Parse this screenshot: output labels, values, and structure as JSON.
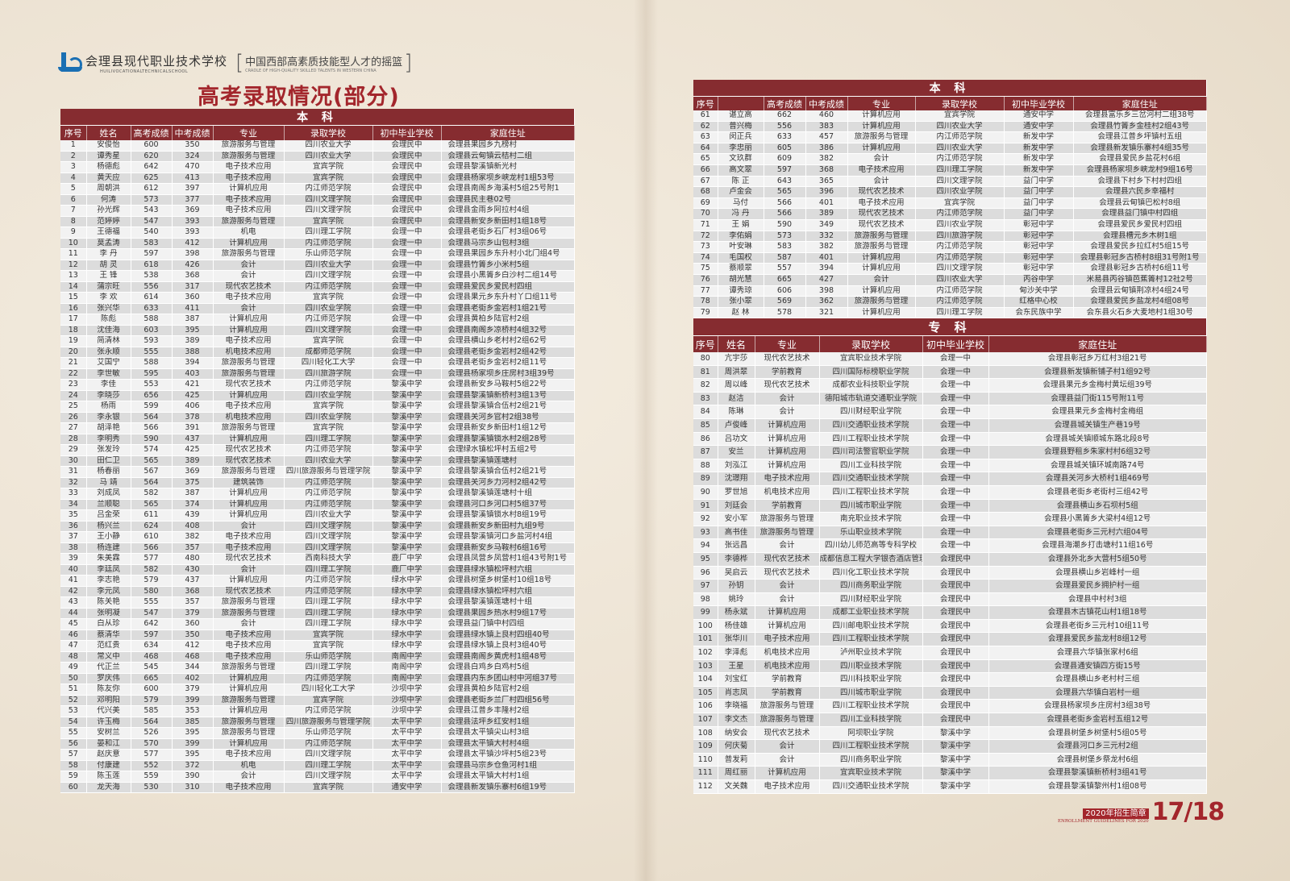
{
  "header": {
    "school_name": "会理县现代职业技术学校",
    "school_name_en": "HUILIVOCATIONALTECHNICALSCHOOL",
    "slogan": "中国西部高素质技能型人才的摇篮",
    "slogan_en": "CRADLE OF HIGH-QUALITY SKILLED TALENTS IN WESTERN CHINA",
    "bracket_open": "[",
    "bracket_close": "]"
  },
  "title": "高考录取情况(部分)",
  "colors": {
    "header_bg": "#862c30",
    "title": "#a3262c",
    "row_light": "#f2f2f2",
    "row_dark": "#dcdcdc"
  },
  "left": {
    "band": "本 科",
    "columns": [
      "序号",
      "姓名",
      "高考成绩",
      "中考成绩",
      "专业",
      "录取学校",
      "初中毕业学校",
      "家庭住址"
    ],
    "rows": [
      [
        "1",
        "安俊怡",
        "600",
        "350",
        "旅游服务与管理",
        "四川农业大学",
        "会理民中",
        "会理县果园乡九榜村"
      ],
      [
        "2",
        "谭秀星",
        "620",
        "324",
        "旅游服务与管理",
        "四川农业大学",
        "会理民中",
        "会理县云甸镇云桔村二组"
      ],
      [
        "3",
        "杨德彪",
        "642",
        "470",
        "电子技术应用",
        "宜宾学院",
        "会理民中",
        "会理县黎溪镇新光村"
      ],
      [
        "4",
        "黄天应",
        "625",
        "413",
        "电子技术应用",
        "宜宾学院",
        "会理民中",
        "会理县杨家坝乡峡龙村1组53号"
      ],
      [
        "5",
        "周朝洪",
        "612",
        "397",
        "计算机应用",
        "内江师范学院",
        "会理民中",
        "会理县南阁乡海溪村5组25号附1"
      ],
      [
        "6",
        "何涛",
        "573",
        "377",
        "电子技术应用",
        "四川文理学院",
        "会理民中",
        "会理县民主巷02号"
      ],
      [
        "7",
        "孙光辉",
        "543",
        "369",
        "电子技术应用",
        "四川文理学院",
        "会理民中",
        "会理县金雨乡阿拉村4组"
      ],
      [
        "8",
        "范婷婷",
        "547",
        "393",
        "旅游服务与管理",
        "宜宾学院",
        "会理民中",
        "会理县新安乡新田村1组18号"
      ],
      [
        "9",
        "王德福",
        "540",
        "393",
        "机电",
        "四川理工学院",
        "会理一中",
        "会理县老街乡石厂村3组06号"
      ],
      [
        "10",
        "莫孟涛",
        "583",
        "412",
        "计算机应用",
        "内江师范学院",
        "会理一中",
        "会理县马宗乡山包村3组"
      ],
      [
        "11",
        "李 丹",
        "597",
        "398",
        "旅游服务与管理",
        "乐山师范学院",
        "会理一中",
        "会理县果园乡东升村小北门组4号"
      ],
      [
        "12",
        "胡 灵",
        "618",
        "426",
        "会计",
        "四川农业大学",
        "会理一中",
        "会理县竹箐乡小米村5组"
      ],
      [
        "13",
        "王 锋",
        "538",
        "368",
        "会计",
        "四川文理学院",
        "会理一中",
        "会理县小黑箐乡白沙村二组14号"
      ],
      [
        "14",
        "蒲宗旺",
        "556",
        "317",
        "现代农艺技术",
        "内江师范学院",
        "会理一中",
        "会理县爱民乡爱民村四组"
      ],
      [
        "15",
        "李 欢",
        "614",
        "360",
        "电子技术应用",
        "宜宾学院",
        "会理一中",
        "会理县果元乡东升村丫口组11号"
      ],
      [
        "16",
        "张兴华",
        "633",
        "411",
        "会计",
        "四川农业学院",
        "会理一中",
        "会理县老街乡金岩村1组21号"
      ],
      [
        "17",
        "陈彪",
        "588",
        "387",
        "计算机应用",
        "内江师范学院",
        "会理一中",
        "会理县黄柏乡陆官村2组"
      ],
      [
        "18",
        "沈佳海",
        "603",
        "395",
        "计算机应用",
        "四川文理学院",
        "会理一中",
        "会理县南阁乡凉桥村4组32号"
      ],
      [
        "19",
        "简清林",
        "593",
        "389",
        "电子技术应用",
        "宜宾学院",
        "会理一中",
        "会理县横山乡老村村2组62号"
      ],
      [
        "20",
        "张永顺",
        "555",
        "388",
        "机电技术应用",
        "成都师范学院",
        "会理一中",
        "会理县老街乡金岩村2组42号"
      ],
      [
        "21",
        "艾国宁",
        "588",
        "394",
        "旅游服务与管理",
        "四川轻化工大学",
        "会理一中",
        "会理县老街乡金岩村2组11号"
      ],
      [
        "22",
        "李世敏",
        "595",
        "403",
        "旅游服务与管理",
        "四川旅游学院",
        "会理一中",
        "会理县杨家坝乡庄房村3组39号"
      ],
      [
        "23",
        "李佳",
        "553",
        "421",
        "现代农艺技术",
        "内江师范学院",
        "黎溪中学",
        "会理县新安乡马鞍村5组22号"
      ],
      [
        "24",
        "李晓莎",
        "656",
        "425",
        "计算机应用",
        "四川农业学院",
        "黎溪中学",
        "会理县黎溪镇新桥村3组13号"
      ],
      [
        "25",
        "杨雨",
        "599",
        "406",
        "电子技术应用",
        "宜宾学院",
        "黎溪中学",
        "会理县黎溪镇合伍村2组21号"
      ],
      [
        "26",
        "李永银",
        "564",
        "378",
        "机电技术应用",
        "四川农业学院",
        "黎溪中学",
        "会理县关河乡官村2组38号"
      ],
      [
        "27",
        "胡泽艳",
        "566",
        "391",
        "旅游服务与管理",
        "宜宾学院",
        "黎溪中学",
        "会理县新安乡新田村1组12号"
      ],
      [
        "28",
        "李明秀",
        "590",
        "437",
        "计算机应用",
        "四川理工学院",
        "黎溪中学",
        "会理县黎溪镇锁水村2组28号"
      ],
      [
        "29",
        "张发玲",
        "574",
        "425",
        "现代农艺技术",
        "内江师范学院",
        "黎溪中学",
        "会理绿水镇松坪村五组2号"
      ],
      [
        "30",
        "田仁卫",
        "565",
        "389",
        "现代农艺技术",
        "四川农业大学",
        "黎溪中学",
        "会理县黎溪镇莲塘村"
      ],
      [
        "31",
        "杨春丽",
        "567",
        "369",
        "旅游服务与管理",
        "四川旅游服务与管理学院",
        "黎溪中学",
        "会理县黎溪镇合伍村2组21号"
      ],
      [
        "32",
        "马 靖",
        "564",
        "375",
        "建筑装饰",
        "内江师范学院",
        "黎溪中学",
        "会理县关河乡力河村2组42号"
      ],
      [
        "33",
        "刘成凤",
        "582",
        "387",
        "计算机应用",
        "内江师范学院",
        "黎溪中学",
        "会理县黎溪镇莲塘村十组"
      ],
      [
        "34",
        "兰顺聪",
        "565",
        "374",
        "计算机应用",
        "内江师范学院",
        "黎溪中学",
        "会理县河口乡河口村5组37号"
      ],
      [
        "35",
        "吕金荣",
        "611",
        "439",
        "计算机应用",
        "四川农业大学",
        "黎溪中学",
        "会理县黎溪镇锁水村8组19号"
      ],
      [
        "36",
        "杨兴兰",
        "624",
        "408",
        "会计",
        "四川文理学院",
        "黎溪中学",
        "会理县新安乡新田村九组9号"
      ],
      [
        "37",
        "王小静",
        "610",
        "382",
        "电子技术应用",
        "四川文理学院",
        "黎溪中学",
        "会理县黎溪镇河口乡盐河村4组"
      ],
      [
        "38",
        "杨连建",
        "566",
        "357",
        "电子技术应用",
        "四川文理学院",
        "黎溪中学",
        "会理县新安乡马鞍村6组16号"
      ],
      [
        "39",
        "朱美霖",
        "577",
        "480",
        "现代农艺技术",
        "西南科技大学",
        "鹿厂中学",
        "会理县凤营乡凤营村1组43号附1号"
      ],
      [
        "40",
        "李廷凤",
        "582",
        "430",
        "会计",
        "四川理工学院",
        "鹿厂中学",
        "会理县绿水镇松坪村六组"
      ],
      [
        "41",
        "李志艳",
        "579",
        "437",
        "计算机应用",
        "内江师范学院",
        "绿水中学",
        "会理县树堡乡树堡村10组18号"
      ],
      [
        "42",
        "李元凤",
        "580",
        "368",
        "现代农艺技术",
        "内江师范学院",
        "绿水中学",
        "会理县绿水镇松坪村六组"
      ],
      [
        "43",
        "陈关艳",
        "555",
        "357",
        "旅游服务与管理",
        "四川理工学院",
        "绿水中学",
        "会理县黎溪镇莲塘村十组"
      ],
      [
        "44",
        "张明凝",
        "547",
        "379",
        "旅游服务与管理",
        "四川理工学院",
        "绿水中学",
        "会理县果园乡热水村9组17号"
      ],
      [
        "45",
        "白从珍",
        "642",
        "360",
        "会计",
        "四川理工学院",
        "绿水中学",
        "会理县益门镇中村四组"
      ],
      [
        "46",
        "蔡清华",
        "597",
        "350",
        "电子技术应用",
        "宜宾学院",
        "绿水中学",
        "会理县绿水镇上良村四组40号"
      ],
      [
        "47",
        "范红贵",
        "634",
        "412",
        "电子技术应用",
        "宜宾学院",
        "绿水中学",
        "会理县绿水镇上良村3组40号"
      ],
      [
        "48",
        "常义中",
        "468",
        "468",
        "电子技术应用",
        "乐山师范学院",
        "南阁中学",
        "会理县南阁乡黄虎村1组48号"
      ],
      [
        "49",
        "代正兰",
        "545",
        "344",
        "旅游服务与管理",
        "四川理工学院",
        "南阁中学",
        "会理县白鸡乡白鸡村5组"
      ],
      [
        "50",
        "罗庆伟",
        "665",
        "402",
        "计算机应用",
        "内江师范学院",
        "南阁中学",
        "会理县内东乡团山村中河组37号"
      ],
      [
        "51",
        "陈友你",
        "600",
        "379",
        "计算机应用",
        "四川轻化工大学",
        "沙坝中学",
        "会理县黄柏乡陆官村2组"
      ],
      [
        "52",
        "邓明阳",
        "579",
        "399",
        "旅游服务与管理",
        "宜宾学院",
        "沙坝中学",
        "会理县老街乡兰厂村四组56号"
      ],
      [
        "53",
        "代兴美",
        "585",
        "353",
        "计算机应用",
        "内江师范学院",
        "沙坝中学",
        "会理县江普乡丰隆村2组"
      ],
      [
        "54",
        "许玉梅",
        "564",
        "385",
        "旅游服务与管理",
        "四川旅游服务与管理学院",
        "太平中学",
        "会理县法坪乡红安村1组"
      ],
      [
        "55",
        "安树兰",
        "526",
        "395",
        "旅游服务与管理",
        "乐山师范学院",
        "太平中学",
        "会理县太平镇尖山村3组"
      ],
      [
        "56",
        "晏和江",
        "570",
        "399",
        "计算机应用",
        "内江师范学院",
        "太平中学",
        "会理县太平镇大村村4组"
      ],
      [
        "57",
        "赵庆意",
        "577",
        "395",
        "电子技术应用",
        "四川文理学院",
        "太平中学",
        "会理县太平镇沙坪村5组23号"
      ],
      [
        "58",
        "付康建",
        "552",
        "372",
        "机电",
        "四川理工学院",
        "太平中学",
        "会理县马宗乡仓鱼河村1组"
      ],
      [
        "59",
        "陈玉莲",
        "559",
        "390",
        "会计",
        "四川文理学院",
        "太平中学",
        "会理县太平镇大村村1组"
      ],
      [
        "60",
        "龙天海",
        "530",
        "310",
        "电子技术应用",
        "宜宾学院",
        "通安中学",
        "会理县新发镇乐寨村6组19号"
      ]
    ]
  },
  "right_top": {
    "band": "本 科",
    "columns": [
      "序号",
      "",
      "高考成绩",
      "中考成绩",
      "专业",
      "录取学校",
      "初中毕业学校",
      "家庭住址"
    ],
    "rows": [
      [
        "61",
        "谌立高",
        "662",
        "460",
        "计算机应用",
        "宜宾学院",
        "通安中学",
        "会理县富乐乡三岔河村二组38号"
      ],
      [
        "62",
        "普兴梅",
        "556",
        "383",
        "计算机应用",
        "四川农业大学",
        "通安中学",
        "会理县竹箐乡金桂村2组43号"
      ],
      [
        "63",
        "闵正兵",
        "633",
        "457",
        "旅游服务与管理",
        "内江师范学院",
        "新发中学",
        "会理县江普乡坪镇村五组"
      ],
      [
        "64",
        "李忠丽",
        "605",
        "386",
        "计算机应用",
        "四川农业大学",
        "新发中学",
        "会理县新发镇乐寨村4组35号"
      ],
      [
        "65",
        "文玖群",
        "609",
        "382",
        "会计",
        "内江师范学院",
        "新发中学",
        "会理县爱民乡盐花村6组"
      ],
      [
        "66",
        "高文翠",
        "597",
        "368",
        "电子技术应用",
        "四川理工学院",
        "新发中学",
        "会理县杨家坝乡峡龙村9组16号"
      ],
      [
        "67",
        "陈 正",
        "643",
        "365",
        "会计",
        "四川文理学院",
        "益门中学",
        "会理县下村乡下村村四组"
      ],
      [
        "68",
        "卢金会",
        "565",
        "396",
        "现代农艺技术",
        "四川农业学院",
        "益门中学",
        "会理县六民乡幸福村"
      ],
      [
        "69",
        "马付",
        "566",
        "401",
        "电子技术应用",
        "宜宾学院",
        "益门中学",
        "会理县云甸镇巴松村8组"
      ],
      [
        "70",
        "冯 丹",
        "566",
        "389",
        "现代农艺技术",
        "内江师范学院",
        "益门中学",
        "会理县益门镇中村四组"
      ],
      [
        "71",
        "王 娟",
        "590",
        "349",
        "现代农艺技术",
        "四川农业学院",
        "彰冠中学",
        "会理县爱民乡爱民村四组"
      ],
      [
        "72",
        "李佑娟",
        "573",
        "332",
        "旅游服务与管理",
        "四川旅游学院",
        "彰冠中学",
        "会理县槽元乡木树1组"
      ],
      [
        "73",
        "叶安琳",
        "583",
        "382",
        "旅游服务与管理",
        "内江师范学院",
        "彰冠中学",
        "会理县爱民乡拉红村5组15号"
      ],
      [
        "74",
        "毛国权",
        "587",
        "401",
        "计算机应用",
        "内江师范学院",
        "彰冠中学",
        "会理县彰冠乡古桥村8组31号附1号"
      ],
      [
        "75",
        "蔡顺翠",
        "557",
        "394",
        "计算机应用",
        "四川文理学院",
        "彰冠中学",
        "会理县彰冠乡古桥村6组11号"
      ],
      [
        "76",
        "胡光慧",
        "665",
        "427",
        "会计",
        "四川农业大学",
        "丙谷中学",
        "米易县丙谷镇芭蕉箐村12社2号"
      ],
      [
        "77",
        "谭秀琼",
        "606",
        "398",
        "计算机应用",
        "内江师范学院",
        "甸沙关中学",
        "会理县云甸镇荆凉村4组24号"
      ],
      [
        "78",
        "张小翠",
        "569",
        "362",
        "旅游服务与管理",
        "内江师范学院",
        "红格中心校",
        "会理县爱民乡盐龙村4组08号"
      ],
      [
        "79",
        "赵 林",
        "578",
        "321",
        "计算机应用",
        "四川理工学院",
        "会东民族中学",
        "会东县火石乡大麦地村1组30号"
      ]
    ]
  },
  "right_bottom": {
    "band": "专 科",
    "columns": [
      "序号",
      "姓名",
      "专业",
      "录取学校",
      "初中毕业学校",
      "家庭住址"
    ],
    "rows": [
      [
        "80",
        "亢宇莎",
        "现代农艺技术",
        "宜宾职业技术学院",
        "会理一中",
        "会理县彰冠乡万红村3组21号"
      ],
      [
        "81",
        "周洪翠",
        "学前教育",
        "四川国际标榜职业学院",
        "会理一中",
        "会理县新发镇新铺子村1组92号"
      ],
      [
        "82",
        "周以峰",
        "现代农艺技术",
        "成都农业科技职业学院",
        "会理一中",
        "会理县果元乡金梅村黄坛组39号"
      ],
      [
        "83",
        "赵洁",
        "会计",
        "德阳城市轨道交通职业学院",
        "会理一中",
        "会理县益门街115号附11号"
      ],
      [
        "84",
        "陈琳",
        "会计",
        "四川财经职业学院",
        "会理一中",
        "会理县果元乡金梅村金梅组"
      ],
      [
        "85",
        "卢俊峰",
        "计算机应用",
        "四川交通职业技术学院",
        "会理一中",
        "会理县城关镇生产巷19号"
      ],
      [
        "86",
        "吕功文",
        "计算机应用",
        "四川工程职业技术学院",
        "会理一中",
        "会理县城关镇顺城东路北段8号"
      ],
      [
        "87",
        "安兰",
        "计算机应用",
        "四川司法警官职业学院",
        "会理一中",
        "会理县野租乡朱家村村6组32号"
      ],
      [
        "88",
        "刘泓江",
        "计算机应用",
        "四川工业科技学院",
        "会理一中",
        "会理县城关镇环城南路74号"
      ],
      [
        "89",
        "沈璟翔",
        "电子技术应用",
        "四川交通职业技术学院",
        "会理一中",
        "会理县关河乡大桥村1组469号"
      ],
      [
        "90",
        "罗世旭",
        "机电技术应用",
        "四川工程职业技术学院",
        "会理一中",
        "会理县老街乡老街村三组42号"
      ],
      [
        "91",
        "刘廷会",
        "学前教育",
        "四川城市职业学院",
        "会理一中",
        "会理县横山乡石坝村5组"
      ],
      [
        "92",
        "安小军",
        "旅游服务与管理",
        "南充职业技术学院",
        "会理一中",
        "会理县小黑箐乡大梁村4组12号"
      ],
      [
        "93",
        "高书佳",
        "旅游服务与管理",
        "乐山职业技术学院",
        "会理一中",
        "会理县老街乡三元村六组04号"
      ],
      [
        "94",
        "张远昌",
        "会计",
        "四川幼儿师范高等专科学校",
        "会理一中",
        "会理县海潮乡打击塘村11组16号"
      ],
      [
        "95",
        "李德桦",
        "现代农艺技术",
        "成都信息工程大学银杏酒店管理学院",
        "会理民中",
        "会理县外北乡大营村5组50号"
      ],
      [
        "96",
        "吴启云",
        "现代农艺技术",
        "四川化工职业技术学院",
        "会理民中",
        "会理县横山乡岩峰村一组"
      ],
      [
        "97",
        "孙钥",
        "会计",
        "四川商务职业学院",
        "会理民中",
        "会理县爱民乡拥护村一组"
      ],
      [
        "98",
        "姚玲",
        "会计",
        "四川财经职业学院",
        "会理民中",
        "会理县中村村3组"
      ],
      [
        "99",
        "杨永斌",
        "计算机应用",
        "成都工业职业技术学院",
        "会理民中",
        "会理县木古镇花山村1组18号"
      ],
      [
        "100",
        "杨佳雄",
        "计算机应用",
        "四川邮电职业技术学院",
        "会理民中",
        "会理县老街乡三元村10组11号"
      ],
      [
        "101",
        "张华川",
        "电子技术应用",
        "四川工程职业技术学院",
        "会理民中",
        "会理县爱民乡盐龙村8组12号"
      ],
      [
        "102",
        "李泽彪",
        "机电技术应用",
        "泸州职业技术学院",
        "会理民中",
        "会理县六华镇张家村6组"
      ],
      [
        "103",
        "王星",
        "机电技术应用",
        "四川职业技术学院",
        "会理民中",
        "会理县通安镇四方街15号"
      ],
      [
        "104",
        "刘宝红",
        "学前教育",
        "四川科技职业学院",
        "会理民中",
        "会理县横山乡老村村三组"
      ],
      [
        "105",
        "肖志凤",
        "学前教育",
        "四川城市职业学院",
        "会理民中",
        "会理县六华镇白岩村一组"
      ],
      [
        "106",
        "李晓福",
        "旅游服务与管理",
        "四川工程职业技术学院",
        "会理民中",
        "会理县杨家坝乡庄房村3组38号"
      ],
      [
        "107",
        "李文杰",
        "旅游服务与管理",
        "四川工业科技学院",
        "会理民中",
        "会理县老街乡金岩村五组12号"
      ],
      [
        "108",
        "纳安会",
        "现代农艺技术",
        "阿坝职业学院",
        "黎溪中学",
        "会理县树堡乡树堡村5组05号"
      ],
      [
        "109",
        "何庆菊",
        "会计",
        "四川工程职业技术学院",
        "黎溪中学",
        "会理县河口乡三元村2组"
      ],
      [
        "110",
        "普发莉",
        "会计",
        "四川商务职业学院",
        "黎溪中学",
        "会理县树堡乡祭龙村6组"
      ],
      [
        "111",
        "周红丽",
        "计算机应用",
        "宜宾职业技术学院",
        "黎溪中学",
        "会理县黎溪镇新桥村3组41号"
      ],
      [
        "112",
        "文关魏",
        "电子技术应用",
        "四川交通职业技术学院",
        "黎溪中学",
        "会理县黎溪镇黎州村1组08号"
      ]
    ]
  },
  "footer": {
    "badge": "2020年招生简章",
    "subtitle": "ENROLLMENT GUIDELINES FOR 2020",
    "pages": "17/18"
  }
}
